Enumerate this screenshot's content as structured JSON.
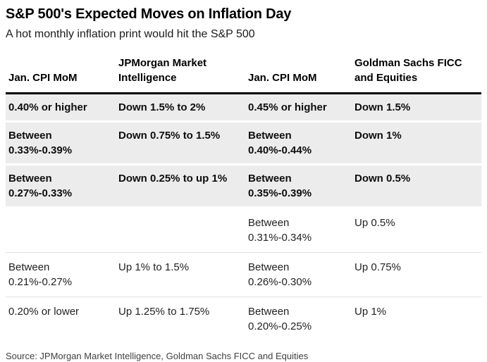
{
  "chart_data": {
    "type": "table",
    "title": "S&P 500's Expected Moves on Inflation Day",
    "subtitle": "A hot monthly inflation print would hit the S&P 500",
    "columns": [
      "Jan. CPI MoM",
      "JPMorgan Market\nIntelligence",
      "Jan. CPI MoM",
      "Goldman Sachs FICC\nand Equities"
    ],
    "rows": [
      [
        "0.40% or higher",
        "Down 1.5% to 2%",
        "0.45% or higher",
        "Down 1.5%"
      ],
      [
        "Between\n0.33%-0.39%",
        "Down 0.75% to 1.5%",
        "Between\n0.40%-0.44%",
        "Down 1%"
      ],
      [
        "Between\n0.27%-0.33%",
        "Down 0.25% to up 1%",
        "Between\n0.35%-0.39%",
        "Down 0.5%"
      ],
      [
        "",
        "",
        "Between\n0.31%-0.34%",
        "Up 0.5%"
      ],
      [
        "Between\n0.21%-0.27%",
        "Up 1% to 1.5%",
        "Between\n0.26%-0.30%",
        "Up 0.75%"
      ],
      [
        "0.20% or lower",
        "Up 1.25% to 1.75%",
        "Between\n0.20%-0.25%",
        "Up 1%"
      ]
    ],
    "shaded_rows": [
      0,
      1,
      2
    ],
    "source": "Source: JPMorgan Market Intelligence, Goldman Sachs FICC and Equities",
    "layout": {
      "grid": "off",
      "legend": "none"
    }
  },
  "colors": {
    "row_shade": "#ececec",
    "header_rule": "#000000",
    "divider": "#e0e0e0",
    "title_text": "#000000",
    "body_text": "#222222",
    "source_text": "#404040"
  }
}
